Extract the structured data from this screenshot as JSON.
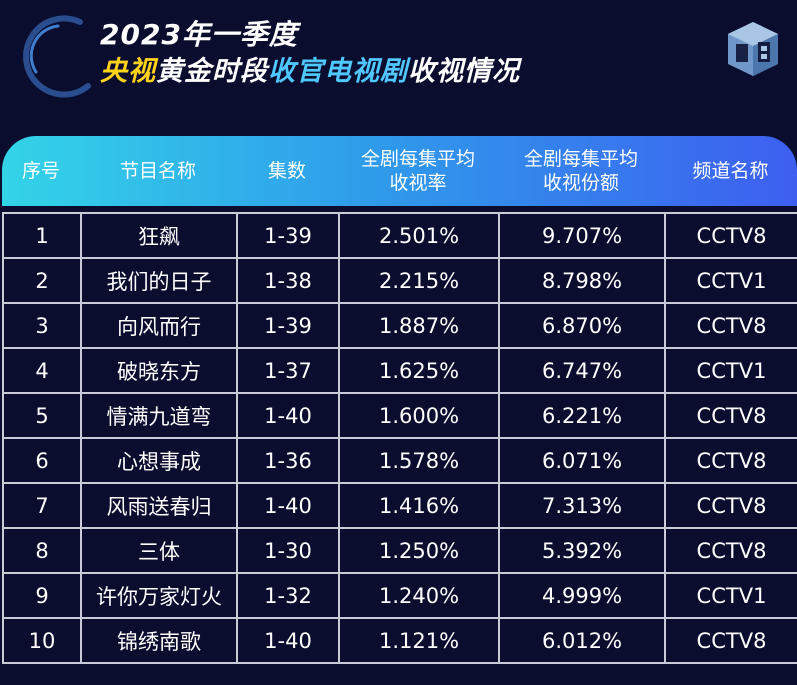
{
  "title": {
    "line1": "2023年一季度",
    "line2_part1": "央视",
    "line2_part2": "黄金时段",
    "line2_part3": "收官电视剧",
    "line2_part4": "收视情况"
  },
  "colors": {
    "background": "#0a0d2e",
    "accent_yellow": "#ffd21a",
    "accent_cyan": "#4fc8ff",
    "header_gradient_start": "#33d4e8",
    "header_gradient_end": "#3d5ff0"
  },
  "logo_icon": "cube-cb-logo-icon",
  "table": {
    "headers": {
      "rank": "序号",
      "name": "节目名称",
      "episodes": "集数",
      "rating_line1": "全剧每集平均",
      "rating_line2": "收视率",
      "share_line1": "全剧每集平均",
      "share_line2": "收视份额",
      "channel": "频道名称"
    },
    "rows": [
      {
        "rank": "1",
        "name": "狂飙",
        "episodes": "1-39",
        "rating": "2.501%",
        "share": "9.707%",
        "channel": "CCTV8"
      },
      {
        "rank": "2",
        "name": "我们的日子",
        "episodes": "1-38",
        "rating": "2.215%",
        "share": "8.798%",
        "channel": "CCTV1"
      },
      {
        "rank": "3",
        "name": "向风而行",
        "episodes": "1-39",
        "rating": "1.887%",
        "share": "6.870%",
        "channel": "CCTV8"
      },
      {
        "rank": "4",
        "name": "破晓东方",
        "episodes": "1-37",
        "rating": "1.625%",
        "share": "6.747%",
        "channel": "CCTV1"
      },
      {
        "rank": "5",
        "name": "情满九道弯",
        "episodes": "1-40",
        "rating": "1.600%",
        "share": "6.221%",
        "channel": "CCTV8"
      },
      {
        "rank": "6",
        "name": "心想事成",
        "episodes": "1-36",
        "rating": "1.578%",
        "share": "6.071%",
        "channel": "CCTV8"
      },
      {
        "rank": "7",
        "name": "风雨送春归",
        "episodes": "1-40",
        "rating": "1.416%",
        "share": "7.313%",
        "channel": "CCTV8"
      },
      {
        "rank": "8",
        "name": "三体",
        "episodes": "1-30",
        "rating": "1.250%",
        "share": "5.392%",
        "channel": "CCTV8"
      },
      {
        "rank": "9",
        "name": "许你万家灯火",
        "episodes": "1-32",
        "rating": "1.240%",
        "share": "4.999%",
        "channel": "CCTV1"
      },
      {
        "rank": "10",
        "name": "锦绣南歌",
        "episodes": "1-40",
        "rating": "1.121%",
        "share": "6.012%",
        "channel": "CCTV8"
      }
    ]
  }
}
